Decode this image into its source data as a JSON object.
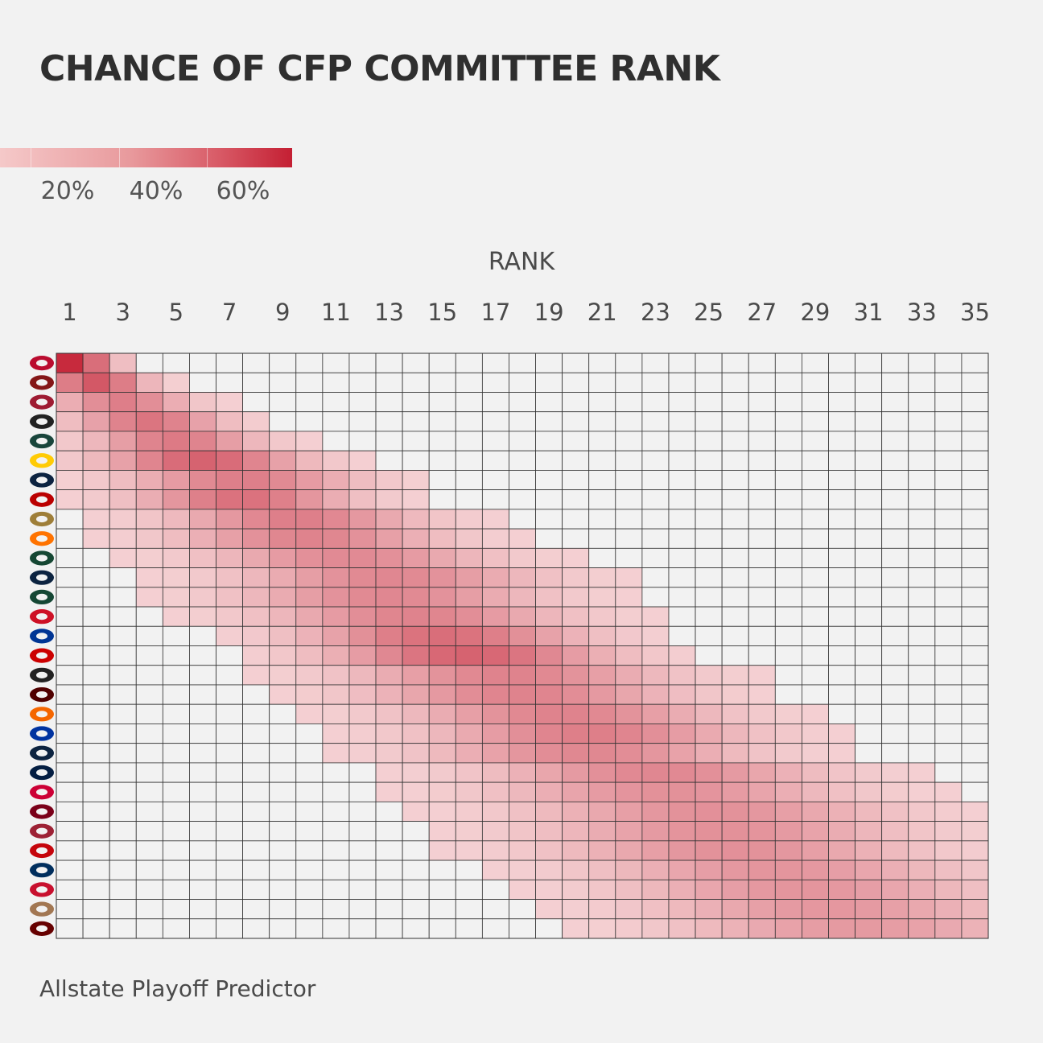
{
  "title": "CHANCE OF CFP COMMITTEE RANK",
  "legend": {
    "labels": [
      "20%",
      "40%",
      "60%"
    ],
    "min_color": "#f5c9c9",
    "max_color": "#c41f33"
  },
  "axis_label": "RANK",
  "footer": "Allstate Playoff Predictor",
  "chart_data": {
    "type": "heatmap",
    "xlabel": "RANK",
    "x": [
      1,
      2,
      3,
      4,
      5,
      6,
      7,
      8,
      9,
      10,
      11,
      12,
      13,
      14,
      15,
      16,
      17,
      18,
      19,
      20,
      21,
      22,
      23,
      24,
      25,
      26,
      27,
      28,
      29,
      30,
      31,
      32,
      33,
      34,
      35
    ],
    "x_tick_labels": [
      "1",
      "3",
      "5",
      "7",
      "9",
      "11",
      "13",
      "15",
      "17",
      "19",
      "21",
      "23",
      "25",
      "27",
      "29",
      "31",
      "33",
      "35"
    ],
    "rows": [
      {
        "team_icon": "georgia-logo-icon",
        "color": "#ba0c2f",
        "center": 1,
        "spread": 2.5,
        "peak": 0.75
      },
      {
        "team_icon": "oklahoma-logo-icon",
        "color": "#841617",
        "center": 2,
        "spread": 3,
        "peak": 0.55
      },
      {
        "team_icon": "alabama-logo-icon",
        "color": "#9e1b32",
        "center": 3,
        "spread": 4,
        "peak": 0.38
      },
      {
        "team_icon": "cincinnati-logo-icon",
        "color": "#222222",
        "center": 4,
        "spread": 4.5,
        "peak": 0.42
      },
      {
        "team_icon": "michigan-state-logo-icon",
        "color": "#18453b",
        "center": 5,
        "spread": 5,
        "peak": 0.4
      },
      {
        "team_icon": "michigan-logo-icon",
        "color": "#ffcb05",
        "center": 6,
        "spread": 6,
        "peak": 0.5
      },
      {
        "team_icon": "notre-dame-logo-icon",
        "color": "#0c2340",
        "center": 7.5,
        "spread": 7,
        "peak": 0.38
      },
      {
        "team_icon": "ohio-state-logo-icon",
        "color": "#bb0000",
        "center": 7.5,
        "spread": 6.5,
        "peak": 0.44
      },
      {
        "team_icon": "wake-forest-logo-icon",
        "color": "#9e7e38",
        "center": 9.5,
        "spread": 7.5,
        "peak": 0.38
      },
      {
        "team_icon": "oklahoma-state-logo-icon",
        "color": "#ff7300",
        "center": 10,
        "spread": 8,
        "peak": 0.36
      },
      {
        "team_icon": "oregon-logo-icon",
        "color": "#154733",
        "center": 11.5,
        "spread": 8.5,
        "peak": 0.33
      },
      {
        "team_icon": "auburn-logo-icon",
        "color": "#0c2340",
        "center": 13,
        "spread": 9,
        "peak": 0.34
      },
      {
        "team_icon": "baylor-logo-icon",
        "color": "#154734",
        "center": 13,
        "spread": 9,
        "peak": 0.34
      },
      {
        "team_icon": "ole-miss-logo-icon",
        "color": "#ce1126",
        "center": 14,
        "spread": 9,
        "peak": 0.36
      },
      {
        "team_icon": "pitt-logo-icon",
        "color": "#003594",
        "center": 15,
        "spread": 8.5,
        "peak": 0.45
      },
      {
        "team_icon": "nc-state-logo-icon",
        "color": "#cc0000",
        "center": 16,
        "spread": 8.5,
        "peak": 0.5
      },
      {
        "team_icon": "iowa-logo-icon",
        "color": "#222222",
        "center": 17.5,
        "spread": 9.5,
        "peak": 0.36
      },
      {
        "team_icon": "texas-am-logo-icon",
        "color": "#500000",
        "center": 18,
        "spread": 9.5,
        "peak": 0.36
      },
      {
        "team_icon": "clemson-logo-icon",
        "color": "#f56600",
        "center": 19.5,
        "spread": 9.5,
        "peak": 0.36
      },
      {
        "team_icon": "kentucky-logo-icon",
        "color": "#0033a0",
        "center": 20.5,
        "spread": 9.5,
        "peak": 0.38
      },
      {
        "team_icon": "utsa-logo-icon",
        "color": "#0c2340",
        "center": 20.5,
        "spread": 9.5,
        "peak": 0.34
      },
      {
        "team_icon": "penn-state-logo-icon",
        "color": "#041e42",
        "center": 23,
        "spread": 10,
        "peak": 0.34
      },
      {
        "team_icon": "smu-logo-icon",
        "color": "#cc0035",
        "center": 23.5,
        "spread": 10.5,
        "peak": 0.3
      },
      {
        "team_icon": "minnesota-logo-icon",
        "color": "#7a0019",
        "center": 25,
        "spread": 11,
        "peak": 0.3
      },
      {
        "team_icon": "arkansas-logo-icon",
        "color": "#9d2235",
        "center": 25.5,
        "spread": 11,
        "peak": 0.3
      },
      {
        "team_icon": "wisconsin-logo-icon",
        "color": "#c5050c",
        "center": 26,
        "spread": 11,
        "peak": 0.3
      },
      {
        "team_icon": "byu-logo-icon",
        "color": "#002e5d",
        "center": 27.5,
        "spread": 11,
        "peak": 0.28
      },
      {
        "team_icon": "iowa-state-logo-icon",
        "color": "#c8102e",
        "center": 28.5,
        "spread": 11,
        "peak": 0.28
      },
      {
        "team_icon": "coastal-carolina-logo-icon",
        "color": "#a27752",
        "center": 29.5,
        "spread": 11,
        "peak": 0.27
      },
      {
        "team_icon": "mississippi-state-logo-icon",
        "color": "#660000",
        "center": 30.5,
        "spread": 11,
        "peak": 0.26
      }
    ]
  }
}
